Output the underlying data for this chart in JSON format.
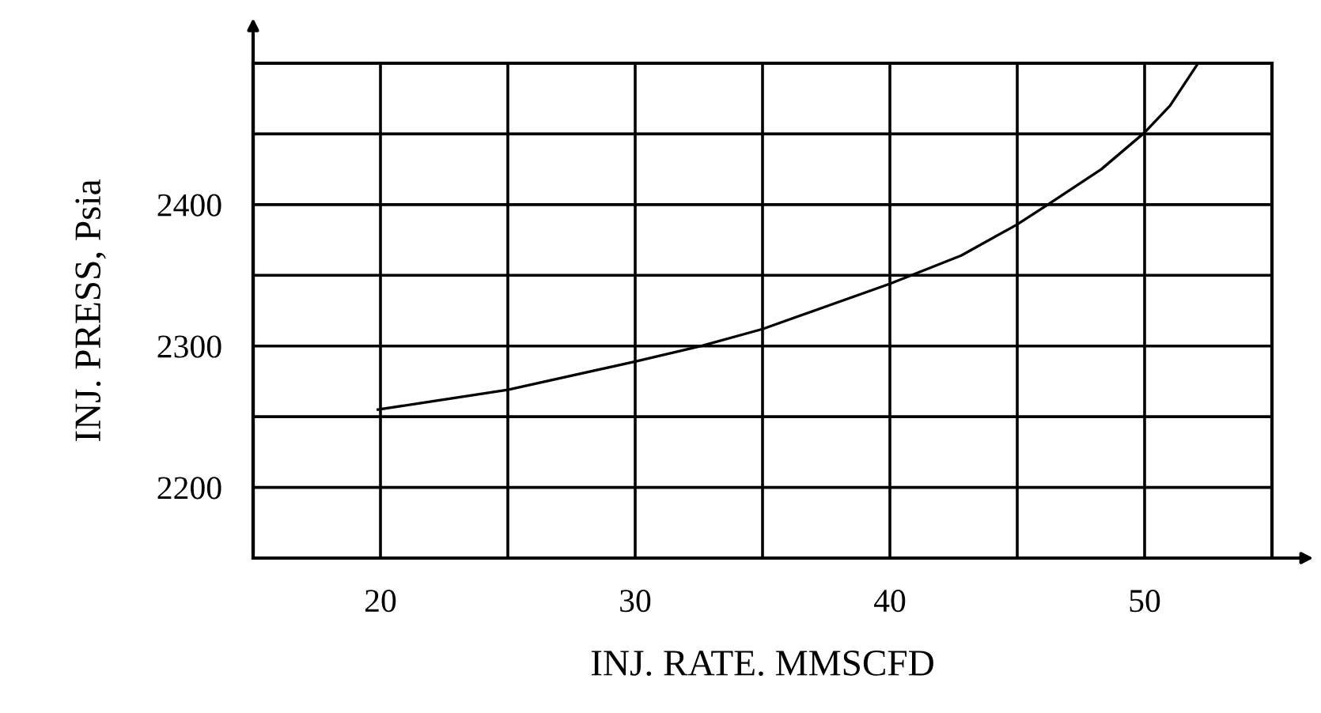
{
  "chart_data": {
    "type": "line",
    "xlabel": "INJ. RATE. MMSCFD",
    "ylabel": "INJ. PRESS, Psia",
    "x": [
      19.9,
      25,
      30,
      32.6,
      35,
      40,
      42.8,
      45,
      46.2,
      48.3,
      50,
      51,
      52.1
    ],
    "series": [
      {
        "color": "#000000",
        "values": [
          2255,
          2269,
          2289,
          2300,
          2312,
          2344,
          2364,
          2386,
          2400,
          2425,
          2451,
          2470,
          2500
        ]
      }
    ],
    "xlim": [
      15,
      55
    ],
    "ylim": [
      2150,
      2500
    ],
    "xticks": [
      20,
      {
        "value": 25,
        "label": null
      },
      30,
      {
        "value": 35,
        "label": null
      },
      40,
      {
        "value": 45,
        "label": null
      },
      50
    ],
    "yticks": [
      2200,
      {
        "value": 2250,
        "label": null
      },
      2300,
      {
        "value": 2350,
        "label": null
      },
      2400,
      {
        "value": 2450,
        "label": null
      }
    ],
    "grid": true,
    "marker": "none",
    "line_style": "solid"
  }
}
